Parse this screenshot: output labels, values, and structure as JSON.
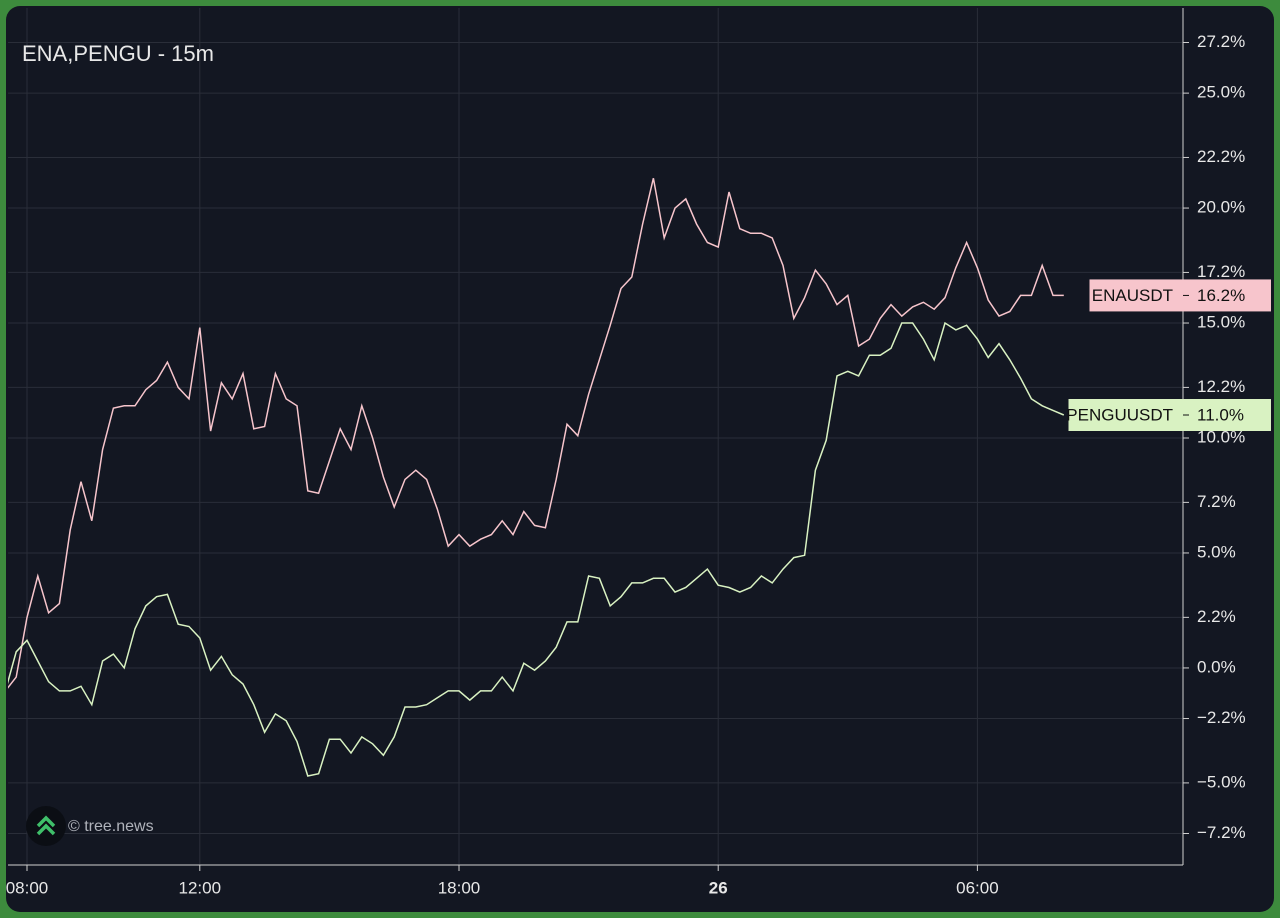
{
  "chart_data": {
    "type": "line",
    "title": "ENA,PENGU - 15m",
    "watermark": "© tree.news",
    "categories": [
      null,
      null,
      "08:00",
      null,
      null,
      null,
      null,
      null,
      null,
      null,
      null,
      null,
      null,
      null,
      null,
      null,
      null,
      null,
      "12:00",
      null,
      null,
      null,
      null,
      null,
      null,
      null,
      null,
      null,
      null,
      null,
      null,
      null,
      null,
      null,
      null,
      null,
      null,
      null,
      null,
      null,
      null,
      null,
      "18:00",
      null,
      null,
      null,
      null,
      null,
      null,
      null,
      null,
      null,
      null,
      null,
      null,
      null,
      null,
      null,
      null,
      null,
      null,
      null,
      null,
      null,
      null,
      null,
      "26",
      null,
      null,
      null,
      null,
      null,
      null,
      null,
      null,
      null,
      null,
      null,
      null,
      null,
      null,
      null,
      null,
      null,
      null,
      null,
      null,
      null,
      null,
      null,
      "06:00",
      null,
      null,
      null,
      null,
      null,
      null,
      null,
      null
    ],
    "series": [
      {
        "name": "ENAUSDT",
        "color": "#f7c5cc",
        "last_label": "16.2%",
        "values": [
          -1.0,
          -0.4,
          2.2,
          4.0,
          2.4,
          2.8,
          6.0,
          8.1,
          6.4,
          9.5,
          11.3,
          11.4,
          11.4,
          12.1,
          12.5,
          13.3,
          12.2,
          11.7,
          14.8,
          10.3,
          12.4,
          11.7,
          12.8,
          10.4,
          10.5,
          12.8,
          11.7,
          11.4,
          7.7,
          7.6,
          9.0,
          10.4,
          9.5,
          11.4,
          10.0,
          8.3,
          7.0,
          8.2,
          8.6,
          8.2,
          6.9,
          5.3,
          5.8,
          5.3,
          5.6,
          5.8,
          6.4,
          5.8,
          6.8,
          6.2,
          6.1,
          8.2,
          10.6,
          10.1,
          11.9,
          13.4,
          14.9,
          16.5,
          17.0,
          19.3,
          21.3,
          18.7,
          20.0,
          20.4,
          19.3,
          18.5,
          18.3,
          20.7,
          19.1,
          18.9,
          18.9,
          18.7,
          17.5,
          15.2,
          16.1,
          17.3,
          16.7,
          15.8,
          16.2,
          14.0,
          14.3,
          15.2,
          15.8,
          15.3,
          15.7,
          15.9,
          15.6,
          16.1,
          17.4,
          18.5,
          17.4,
          16.0,
          15.3,
          15.5,
          16.2,
          16.2,
          17.5,
          16.2,
          16.2
        ]
      },
      {
        "name": "PENGUUSDT",
        "color": "#d9f2c2",
        "last_label": "11.0%",
        "values": [
          -1.0,
          0.7,
          1.2,
          0.3,
          -0.6,
          -1.0,
          -1.0,
          -0.8,
          -1.6,
          0.3,
          0.6,
          0.0,
          1.7,
          2.7,
          3.1,
          3.2,
          1.9,
          1.8,
          1.3,
          -0.1,
          0.5,
          -0.3,
          -0.7,
          -1.6,
          -2.8,
          -2.0,
          -2.3,
          -3.2,
          -4.7,
          -4.6,
          -3.1,
          -3.1,
          -3.7,
          -3.0,
          -3.3,
          -3.8,
          -3.0,
          -1.7,
          -1.7,
          -1.6,
          -1.3,
          -1.0,
          -1.0,
          -1.4,
          -1.0,
          -1.0,
          -0.4,
          -1.0,
          0.2,
          -0.1,
          0.3,
          0.9,
          2.0,
          2.0,
          4.0,
          3.9,
          2.7,
          3.1,
          3.7,
          3.7,
          3.9,
          3.9,
          3.3,
          3.5,
          3.9,
          4.3,
          3.6,
          3.5,
          3.3,
          3.5,
          4.0,
          3.7,
          4.3,
          4.8,
          4.9,
          8.6,
          9.9,
          12.7,
          12.9,
          12.7,
          13.6,
          13.6,
          13.9,
          15.0,
          15.0,
          14.3,
          13.4,
          15.0,
          14.7,
          14.9,
          14.3,
          13.5,
          14.1,
          13.4,
          12.6,
          11.7,
          11.4,
          11.2,
          11.0
        ]
      }
    ],
    "ylim": [
      -8.57,
      28.7
    ],
    "yticks": [
      {
        "value": 27.2,
        "label": "27.2%"
      },
      {
        "value": 25.0,
        "label": "25.0%"
      },
      {
        "value": 22.2,
        "label": "22.2%"
      },
      {
        "value": 20.0,
        "label": "20.0%"
      },
      {
        "value": 17.2,
        "label": "17.2%"
      },
      {
        "value": 15.0,
        "label": "15.0%"
      },
      {
        "value": 12.2,
        "label": "12.2%"
      },
      {
        "value": 10.0,
        "label": "10.0%"
      },
      {
        "value": 7.2,
        "label": "7.2%"
      },
      {
        "value": 5.0,
        "label": "5.0%"
      },
      {
        "value": 2.2,
        "label": "2.2%"
      },
      {
        "value": 0.0,
        "label": "0.0%"
      },
      {
        "value": -2.2,
        "label": "−2.2%"
      },
      {
        "value": -5.0,
        "label": "−5.0%"
      },
      {
        "value": -7.2,
        "label": "−7.2%"
      }
    ],
    "grid": true
  }
}
